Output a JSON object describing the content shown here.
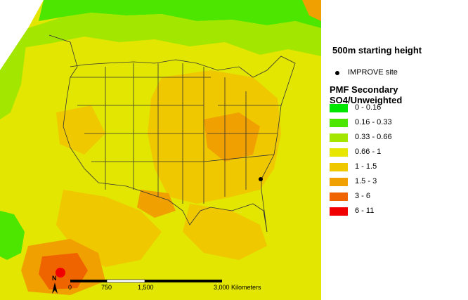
{
  "map": {
    "starting_height": "500m starting height",
    "site_legend_label": "IMPROVE site",
    "layer_title": "PMF Secondary SO4/Unweighted",
    "north_letter": "N",
    "scale_labels": [
      "0",
      "750",
      "1,500",
      "3,000 Kilometers"
    ],
    "legend_classes": [
      {
        "label": "0 - 0.16",
        "color": "#00e600"
      },
      {
        "label": "0.16 - 0.33",
        "color": "#4ce600"
      },
      {
        "label": "0.33 - 0.66",
        "color": "#a3e600"
      },
      {
        "label": "0.66 - 1",
        "color": "#e6e600"
      },
      {
        "label": "1 - 1.5",
        "color": "#f0c800"
      },
      {
        "label": "1.5 - 3",
        "color": "#f0a000"
      },
      {
        "label": "3 - 6",
        "color": "#f06400"
      },
      {
        "label": "6 - 11",
        "color": "#f00000"
      }
    ],
    "colors": {
      "low": "#00e600",
      "mid": "#e6e600",
      "high": "#f00000",
      "site_marker": "#000000"
    }
  }
}
